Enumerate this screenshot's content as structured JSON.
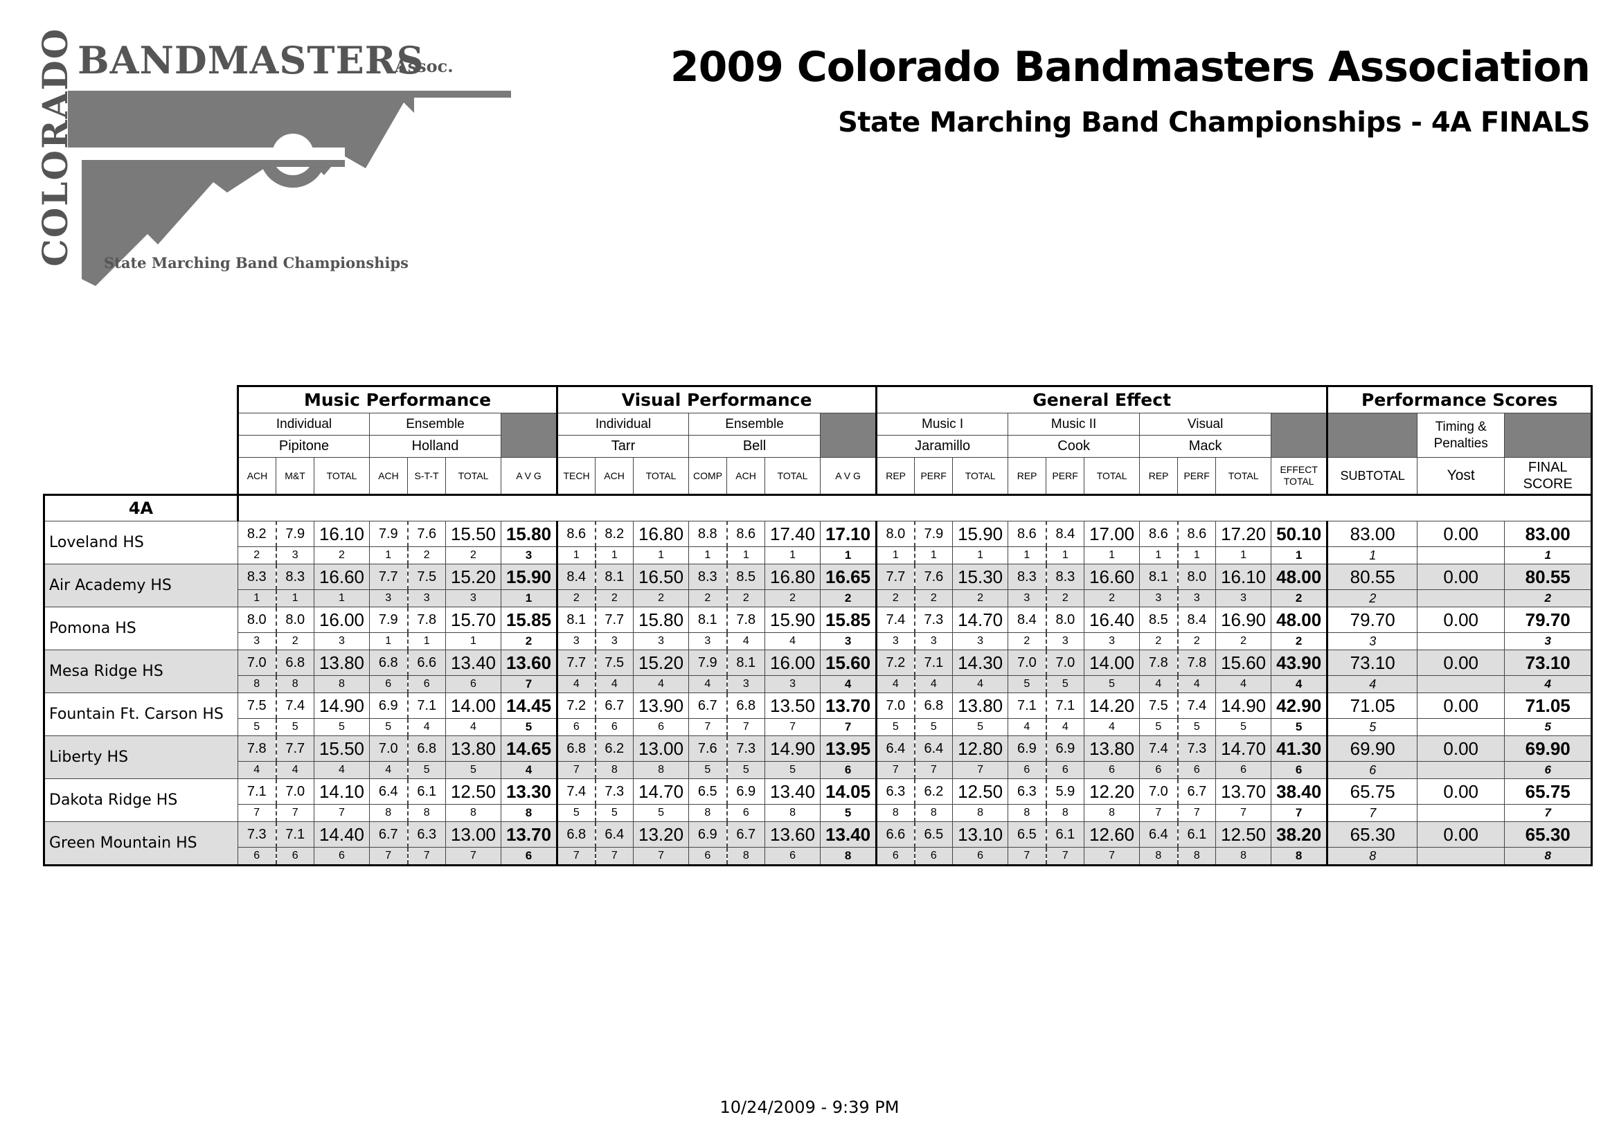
{
  "logo": {
    "word_vertical": "COLORADO",
    "word_main": "BANDMASTERS",
    "word_assoc": "Assoc.",
    "subtitle": "State Marching Band Championships",
    "color": "#555555"
  },
  "header": {
    "title": "2009 Colorado Bandmasters Association",
    "subtitle": "State Marching Band Championships - 4A FINALS"
  },
  "table": {
    "groups": {
      "music": "Music Performance",
      "visual": "Visual Performance",
      "ge": "General Effect",
      "perf": "Performance Scores"
    },
    "sub": {
      "individual": "Individual",
      "ensemble": "Ensemble",
      "music1": "Music I",
      "music2": "Music II",
      "visual": "Visual",
      "timing": "Timing &",
      "penalties": "Penalties"
    },
    "judges": {
      "mp_ind": "Pipitone",
      "mp_ens": "Holland",
      "vp_ind": "Tarr",
      "vp_ens": "Bell",
      "ge_m1": "Jaramillo",
      "ge_m2": "Cook",
      "ge_v": "Mack",
      "timing": "Yost"
    },
    "cols": {
      "ach": "ACH",
      "mt": "M&T",
      "total": "TOTAL",
      "stt": "S-T-T",
      "avg": "A V G",
      "tech": "TECH",
      "comp": "COMP",
      "rep": "REP",
      "perf": "PERF",
      "effect1": "EFFECT",
      "effect2": "TOTAL",
      "subtotal": "SUBTOTAL",
      "final1": "FINAL",
      "final2": "SCORE"
    },
    "class_label": "4A",
    "rows": [
      {
        "school": "Loveland HS",
        "scores": [
          "8.2",
          "7.9",
          "16.10",
          "7.9",
          "7.6",
          "15.50",
          "15.80",
          "8.6",
          "8.2",
          "16.80",
          "8.8",
          "8.6",
          "17.40",
          "17.10",
          "8.0",
          "7.9",
          "15.90",
          "8.6",
          "8.4",
          "17.00",
          "8.6",
          "8.6",
          "17.20",
          "50.10",
          "83.00",
          "0.00",
          "83.00"
        ],
        "ranks": [
          "2",
          "3",
          "2",
          "1",
          "2",
          "2",
          "3",
          "1",
          "1",
          "1",
          "1",
          "1",
          "1",
          "1",
          "1",
          "1",
          "1",
          "1",
          "1",
          "1",
          "1",
          "1",
          "1",
          "1",
          "1",
          "",
          "1"
        ]
      },
      {
        "school": "Air Academy HS",
        "scores": [
          "8.3",
          "8.3",
          "16.60",
          "7.7",
          "7.5",
          "15.20",
          "15.90",
          "8.4",
          "8.1",
          "16.50",
          "8.3",
          "8.5",
          "16.80",
          "16.65",
          "7.7",
          "7.6",
          "15.30",
          "8.3",
          "8.3",
          "16.60",
          "8.1",
          "8.0",
          "16.10",
          "48.00",
          "80.55",
          "0.00",
          "80.55"
        ],
        "ranks": [
          "1",
          "1",
          "1",
          "3",
          "3",
          "3",
          "1",
          "2",
          "2",
          "2",
          "2",
          "2",
          "2",
          "2",
          "2",
          "2",
          "2",
          "3",
          "2",
          "2",
          "3",
          "3",
          "3",
          "2",
          "2",
          "",
          "2"
        ]
      },
      {
        "school": "Pomona HS",
        "scores": [
          "8.0",
          "8.0",
          "16.00",
          "7.9",
          "7.8",
          "15.70",
          "15.85",
          "8.1",
          "7.7",
          "15.80",
          "8.1",
          "7.8",
          "15.90",
          "15.85",
          "7.4",
          "7.3",
          "14.70",
          "8.4",
          "8.0",
          "16.40",
          "8.5",
          "8.4",
          "16.90",
          "48.00",
          "79.70",
          "0.00",
          "79.70"
        ],
        "ranks": [
          "3",
          "2",
          "3",
          "1",
          "1",
          "1",
          "2",
          "3",
          "3",
          "3",
          "3",
          "4",
          "4",
          "3",
          "3",
          "3",
          "3",
          "2",
          "3",
          "3",
          "2",
          "2",
          "2",
          "2",
          "3",
          "",
          "3"
        ]
      },
      {
        "school": "Mesa Ridge HS",
        "scores": [
          "7.0",
          "6.8",
          "13.80",
          "6.8",
          "6.6",
          "13.40",
          "13.60",
          "7.7",
          "7.5",
          "15.20",
          "7.9",
          "8.1",
          "16.00",
          "15.60",
          "7.2",
          "7.1",
          "14.30",
          "7.0",
          "7.0",
          "14.00",
          "7.8",
          "7.8",
          "15.60",
          "43.90",
          "73.10",
          "0.00",
          "73.10"
        ],
        "ranks": [
          "8",
          "8",
          "8",
          "6",
          "6",
          "6",
          "7",
          "4",
          "4",
          "4",
          "4",
          "3",
          "3",
          "4",
          "4",
          "4",
          "4",
          "5",
          "5",
          "5",
          "4",
          "4",
          "4",
          "4",
          "4",
          "",
          "4"
        ]
      },
      {
        "school": "Fountain Ft. Carson HS",
        "scores": [
          "7.5",
          "7.4",
          "14.90",
          "6.9",
          "7.1",
          "14.00",
          "14.45",
          "7.2",
          "6.7",
          "13.90",
          "6.7",
          "6.8",
          "13.50",
          "13.70",
          "7.0",
          "6.8",
          "13.80",
          "7.1",
          "7.1",
          "14.20",
          "7.5",
          "7.4",
          "14.90",
          "42.90",
          "71.05",
          "0.00",
          "71.05"
        ],
        "ranks": [
          "5",
          "5",
          "5",
          "5",
          "4",
          "4",
          "5",
          "6",
          "6",
          "6",
          "7",
          "7",
          "7",
          "7",
          "5",
          "5",
          "5",
          "4",
          "4",
          "4",
          "5",
          "5",
          "5",
          "5",
          "5",
          "",
          "5"
        ]
      },
      {
        "school": "Liberty HS",
        "scores": [
          "7.8",
          "7.7",
          "15.50",
          "7.0",
          "6.8",
          "13.80",
          "14.65",
          "6.8",
          "6.2",
          "13.00",
          "7.6",
          "7.3",
          "14.90",
          "13.95",
          "6.4",
          "6.4",
          "12.80",
          "6.9",
          "6.9",
          "13.80",
          "7.4",
          "7.3",
          "14.70",
          "41.30",
          "69.90",
          "0.00",
          "69.90"
        ],
        "ranks": [
          "4",
          "4",
          "4",
          "4",
          "5",
          "5",
          "4",
          "7",
          "8",
          "8",
          "5",
          "5",
          "5",
          "6",
          "7",
          "7",
          "7",
          "6",
          "6",
          "6",
          "6",
          "6",
          "6",
          "6",
          "6",
          "",
          "6"
        ]
      },
      {
        "school": "Dakota Ridge HS",
        "scores": [
          "7.1",
          "7.0",
          "14.10",
          "6.4",
          "6.1",
          "12.50",
          "13.30",
          "7.4",
          "7.3",
          "14.70",
          "6.5",
          "6.9",
          "13.40",
          "14.05",
          "6.3",
          "6.2",
          "12.50",
          "6.3",
          "5.9",
          "12.20",
          "7.0",
          "6.7",
          "13.70",
          "38.40",
          "65.75",
          "0.00",
          "65.75"
        ],
        "ranks": [
          "7",
          "7",
          "7",
          "8",
          "8",
          "8",
          "8",
          "5",
          "5",
          "5",
          "8",
          "6",
          "8",
          "5",
          "8",
          "8",
          "8",
          "8",
          "8",
          "8",
          "7",
          "7",
          "7",
          "7",
          "7",
          "",
          "7"
        ]
      },
      {
        "school": "Green Mountain HS",
        "scores": [
          "7.3",
          "7.1",
          "14.40",
          "6.7",
          "6.3",
          "13.00",
          "13.70",
          "6.8",
          "6.4",
          "13.20",
          "6.9",
          "6.7",
          "13.60",
          "13.40",
          "6.6",
          "6.5",
          "13.10",
          "6.5",
          "6.1",
          "12.60",
          "6.4",
          "6.1",
          "12.50",
          "38.20",
          "65.30",
          "0.00",
          "65.30"
        ],
        "ranks": [
          "6",
          "6",
          "6",
          "7",
          "7",
          "7",
          "6",
          "7",
          "7",
          "7",
          "6",
          "8",
          "6",
          "8",
          "6",
          "6",
          "6",
          "7",
          "7",
          "7",
          "8",
          "8",
          "8",
          "8",
          "8",
          "",
          "8"
        ]
      }
    ]
  },
  "footer": {
    "timestamp": "10/24/2009 - 9:39 PM"
  }
}
